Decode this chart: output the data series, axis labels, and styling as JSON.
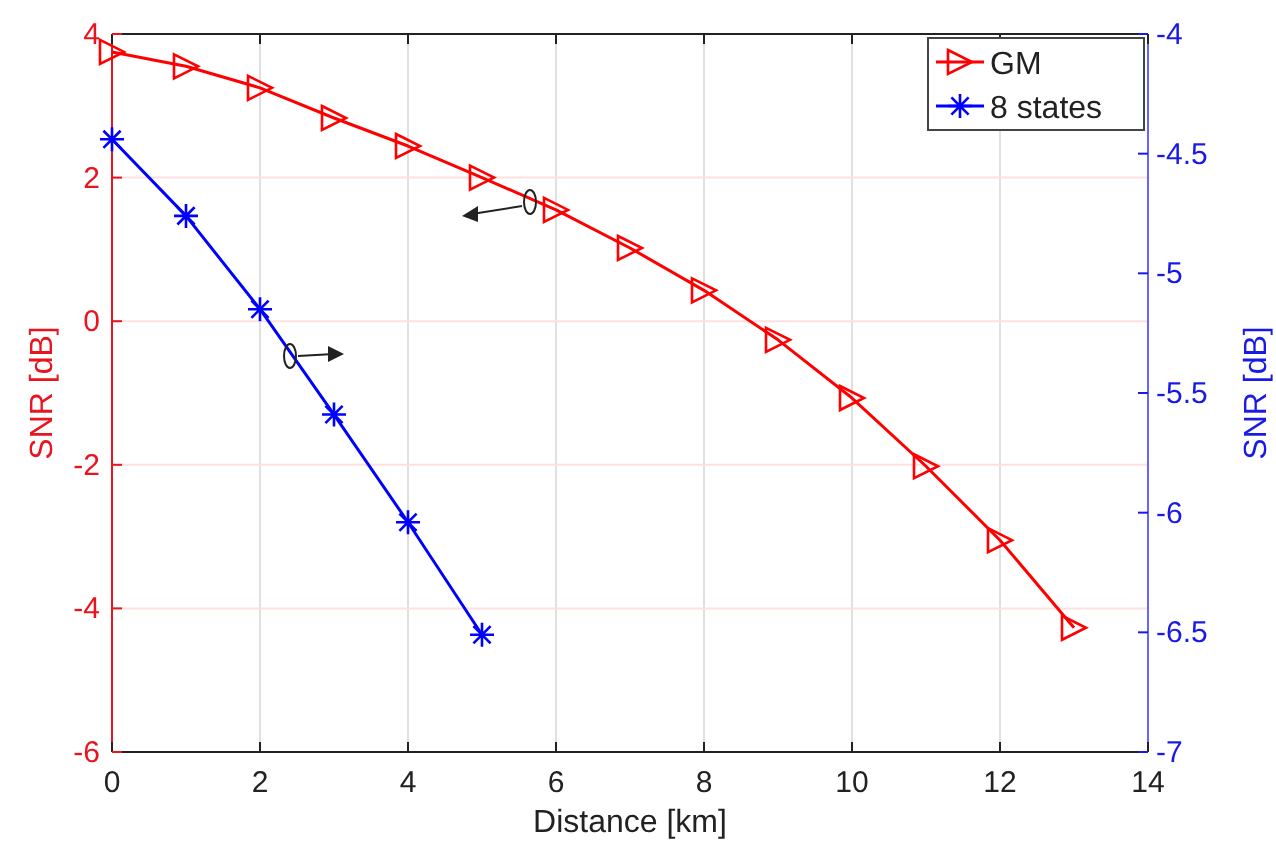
{
  "chart_data": {
    "type": "line",
    "xlabel": "Distance [km]",
    "ylabel": "SNR [dB]",
    "y2label": "SNR [dB]",
    "xlim": [
      0,
      14
    ],
    "xticks": [
      0,
      2,
      4,
      6,
      8,
      10,
      12,
      14
    ],
    "ylim": [
      -6,
      4
    ],
    "yticks": [
      -6,
      -4,
      -2,
      0,
      2,
      4
    ],
    "y2lim": [
      -7,
      -4
    ],
    "y2ticks": [
      -7,
      -6.5,
      -6,
      -5.5,
      -5,
      -4.5,
      -4
    ],
    "grid": true,
    "legend": "top right",
    "line_style": "solid",
    "series": [
      {
        "name": "GM",
        "color": "#ff0000",
        "marker": "triangle",
        "x": [
          0,
          1,
          2,
          3,
          4,
          5,
          6,
          7,
          8,
          9,
          10,
          11,
          12,
          13
        ],
        "values": [
          3.75,
          3.55,
          3.25,
          2.83,
          2.44,
          2.0,
          1.55,
          1.02,
          0.43,
          -0.26,
          -1.07,
          -2.02,
          -3.05,
          -4.27
        ]
      },
      {
        "name": "8 states",
        "color": "#0000ff",
        "marker": "cross",
        "axis": "y2",
        "x": [
          0,
          1,
          2,
          3,
          4,
          5
        ],
        "values": [
          -4.44,
          -4.76,
          -5.15,
          -5.59,
          -6.04,
          -6.51
        ]
      }
    ]
  }
}
